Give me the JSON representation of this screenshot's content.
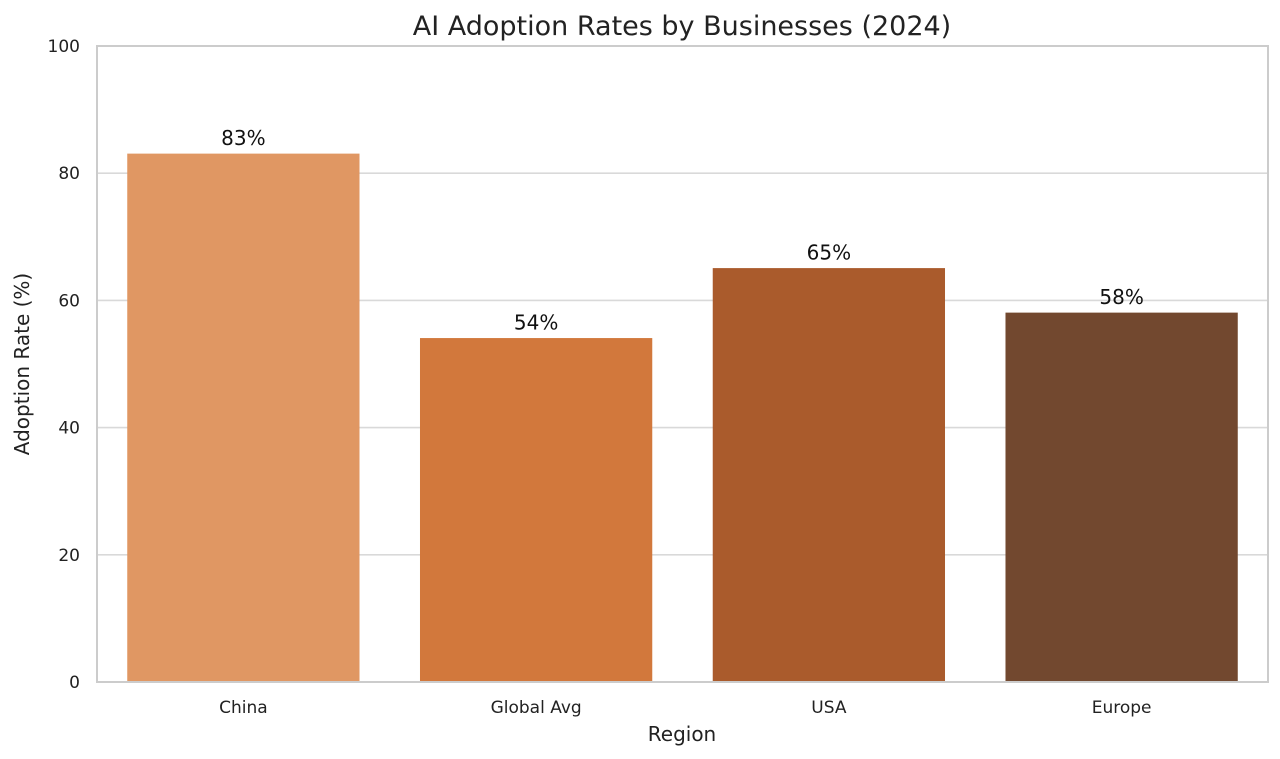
{
  "chart_data": {
    "type": "bar",
    "title": "AI Adoption Rates by Businesses (2024)",
    "xlabel": "Region",
    "ylabel": "Adoption Rate (%)",
    "categories": [
      "China",
      "Global Avg",
      "USA",
      "Europe"
    ],
    "values": [
      83,
      54,
      65,
      58
    ],
    "value_labels": [
      "83%",
      "54%",
      "65%",
      "58%"
    ],
    "colors": [
      "#E09763",
      "#D2783C",
      "#AA5B2C",
      "#72482F"
    ],
    "ylim": [
      0,
      100
    ],
    "yticks": [
      0,
      20,
      40,
      60,
      80,
      100
    ],
    "ytick_labels": [
      "0",
      "20",
      "40",
      "60",
      "80",
      "100"
    ],
    "grid": true,
    "grid_axis": "y",
    "grid_color": "#d9d9d9",
    "axis_color": "#cccccc",
    "background": "#ffffff"
  }
}
